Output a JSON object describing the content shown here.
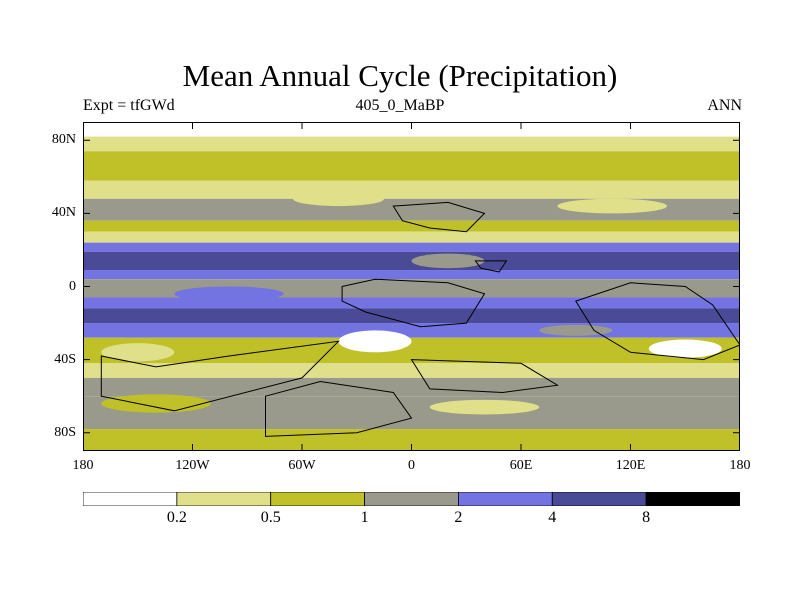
{
  "chart_data": {
    "type": "heatmap",
    "title": "Mean Annual Cycle (Precipitation)",
    "subtitle_left": "Expt = tfGWd",
    "subtitle_center": "405_0_MaBP",
    "subtitle_right": "ANN",
    "xlabel": "",
    "ylabel": "",
    "xlim": [
      -180,
      180
    ],
    "ylim": [
      -90,
      90
    ],
    "x_ticks": [
      {
        "value": -180,
        "label": "180"
      },
      {
        "value": -120,
        "label": "120W"
      },
      {
        "value": -60,
        "label": "60W"
      },
      {
        "value": 0,
        "label": "0"
      },
      {
        "value": 60,
        "label": "60E"
      },
      {
        "value": 120,
        "label": "120E"
      },
      {
        "value": 180,
        "label": "180"
      }
    ],
    "y_ticks": [
      {
        "value": 80,
        "label": "80N"
      },
      {
        "value": 40,
        "label": "40N"
      },
      {
        "value": 0,
        "label": "0"
      },
      {
        "value": -40,
        "label": "40S"
      },
      {
        "value": -80,
        "label": "80S"
      }
    ],
    "contour_levels": [
      0.2,
      0.5,
      1,
      2,
      4,
      8
    ],
    "level_labels": [
      "0.2",
      "0.5",
      "1",
      "2",
      "4",
      "8"
    ],
    "fill_colors": [
      "#ffffff",
      "#e0e08a",
      "#c0c028",
      "#9a9a8c",
      "#7373e1",
      "#4a4a96",
      "#000000"
    ],
    "zonal_bands": [
      {
        "lat_range": [
          82,
          90
        ],
        "value": 0.1
      },
      {
        "lat_range": [
          74,
          82
        ],
        "value": 0.3
      },
      {
        "lat_range": [
          58,
          74
        ],
        "value": 0.7
      },
      {
        "lat_range": [
          48,
          58
        ],
        "value": 0.35
      },
      {
        "lat_range": [
          36,
          48
        ],
        "value": 1.3
      },
      {
        "lat_range": [
          30,
          36
        ],
        "value": 0.7
      },
      {
        "lat_range": [
          24,
          30
        ],
        "value": 0.3
      },
      {
        "lat_range": [
          19,
          24
        ],
        "value": 2.5
      },
      {
        "lat_range": [
          9,
          19
        ],
        "value": 5.0
      },
      {
        "lat_range": [
          4,
          9
        ],
        "value": 2.5
      },
      {
        "lat_range": [
          -6,
          4
        ],
        "value": 1.4
      },
      {
        "lat_range": [
          -12,
          -6
        ],
        "value": 2.6
      },
      {
        "lat_range": [
          -20,
          -12
        ],
        "value": 5.0
      },
      {
        "lat_range": [
          -28,
          -20
        ],
        "value": 2.5
      },
      {
        "lat_range": [
          -42,
          -28
        ],
        "value": 0.7
      },
      {
        "lat_range": [
          -50,
          -42
        ],
        "value": 0.35
      },
      {
        "lat_range": [
          -60,
          -50
        ],
        "value": 1.3
      },
      {
        "lat_range": [
          -78,
          -60
        ],
        "value": 1.6
      },
      {
        "lat_range": [
          -90,
          -78
        ],
        "value": 0.7
      }
    ],
    "anomalies": [
      {
        "lon": -160,
        "lat": 42,
        "w": 40,
        "h": 6,
        "value": 1.6
      },
      {
        "lon": -40,
        "lat": 48,
        "w": 50,
        "h": 8,
        "value": 0.2
      },
      {
        "lon": 110,
        "lat": 44,
        "w": 60,
        "h": 8,
        "value": 0.35
      },
      {
        "lon": -150,
        "lat": -36,
        "w": 40,
        "h": 10,
        "value": 0.3
      },
      {
        "lon": -20,
        "lat": -30,
        "w": 40,
        "h": 12,
        "value": 0.15
      },
      {
        "lon": 150,
        "lat": -34,
        "w": 40,
        "h": 10,
        "value": 0.15
      },
      {
        "lon": -140,
        "lat": -64,
        "w": 60,
        "h": 10,
        "value": 0.5
      },
      {
        "lon": 40,
        "lat": -66,
        "w": 60,
        "h": 8,
        "value": 0.4
      },
      {
        "lon": 20,
        "lat": 14,
        "w": 40,
        "h": 8,
        "value": 1.6
      },
      {
        "lon": -100,
        "lat": -4,
        "w": 60,
        "h": 8,
        "value": 2.3
      },
      {
        "lon": 90,
        "lat": -24,
        "w": 40,
        "h": 6,
        "value": 1.3
      }
    ],
    "land_outline": [
      [
        [
          -10,
          44
        ],
        [
          20,
          46
        ],
        [
          40,
          40
        ],
        [
          30,
          30
        ],
        [
          10,
          32
        ],
        [
          -5,
          36
        ]
      ],
      [
        [
          35,
          14
        ],
        [
          52,
          14
        ],
        [
          48,
          8
        ],
        [
          38,
          10
        ]
      ],
      [
        [
          -38,
          0
        ],
        [
          -20,
          4
        ],
        [
          20,
          2
        ],
        [
          40,
          -4
        ],
        [
          30,
          -20
        ],
        [
          5,
          -22
        ],
        [
          -25,
          -14
        ],
        [
          -38,
          -8
        ]
      ],
      [
        [
          -170,
          -38
        ],
        [
          -140,
          -44
        ],
        [
          -100,
          -38
        ],
        [
          -40,
          -30
        ],
        [
          -60,
          -50
        ],
        [
          -130,
          -68
        ],
        [
          -170,
          -60
        ]
      ],
      [
        [
          -80,
          -60
        ],
        [
          -50,
          -52
        ],
        [
          -10,
          -58
        ],
        [
          0,
          -72
        ],
        [
          -30,
          -80
        ],
        [
          -80,
          -82
        ]
      ],
      [
        [
          90,
          -8
        ],
        [
          120,
          2
        ],
        [
          150,
          0
        ],
        [
          165,
          -10
        ],
        [
          180,
          -32
        ],
        [
          160,
          -40
        ],
        [
          120,
          -36
        ],
        [
          100,
          -24
        ]
      ],
      [
        [
          0,
          -40
        ],
        [
          60,
          -42
        ],
        [
          80,
          -54
        ],
        [
          50,
          -58
        ],
        [
          10,
          -56
        ]
      ]
    ]
  }
}
